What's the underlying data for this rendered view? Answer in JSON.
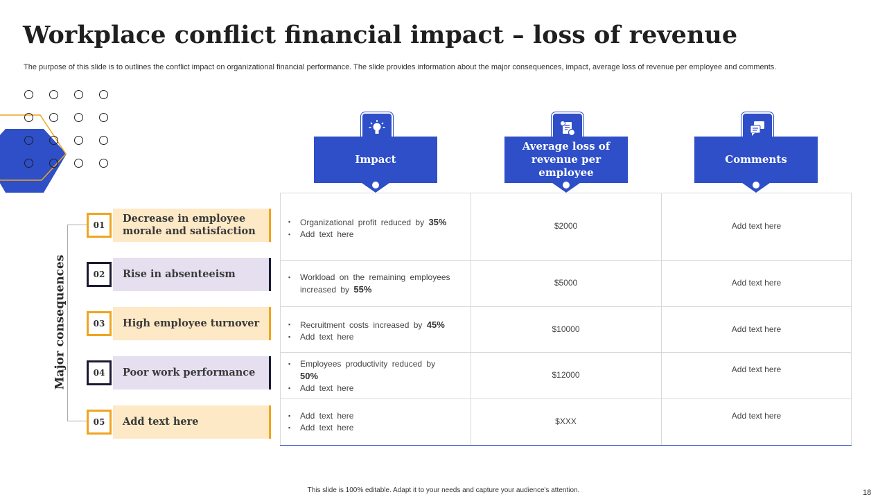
{
  "slide": {
    "title": "Workplace conflict financial impact – loss of revenue",
    "subtitle": "The purpose of this slide is to outlines the conflict impact on organizational financial performance. The slide provides information about the major consequences, impact, average loss of revenue per employee and comments.",
    "footer": "This slide is 100% editable.  Adapt it to your needs and capture your audience's attention.",
    "page_number": "18"
  },
  "colors": {
    "accent_blue": "#2e4fc8",
    "accent_orange": "#f0a41e",
    "tint_orange": "#fde9c6",
    "tint_purple": "#e5dff0",
    "dark": "#1a1a33"
  },
  "headers": [
    {
      "label": "Impact",
      "icon": "lightbulb-icon"
    },
    {
      "label": "Average loss of revenue per employee",
      "icon": "revenue-document-icon"
    },
    {
      "label": "Comments",
      "icon": "chat-bubbles-icon"
    }
  ],
  "side_label": "Major consequences",
  "consequences": [
    {
      "num": "01",
      "label": "Decrease in employee morale and satisfaction",
      "style": "orange"
    },
    {
      "num": "02",
      "label": "Rise in absenteeism",
      "style": "purple"
    },
    {
      "num": "03",
      "label": "High employee turnover",
      "style": "orange"
    },
    {
      "num": "04",
      "label": "Poor work performance",
      "style": "purple"
    },
    {
      "num": "05",
      "label": "Add text here",
      "style": "orange"
    }
  ],
  "rows": [
    {
      "impact": [
        {
          "text": "Organizational profit reduced by ",
          "bold": "35%"
        },
        {
          "text": "Add text here",
          "bold": ""
        }
      ],
      "loss": "$2000",
      "comment": "Add text here"
    },
    {
      "impact": [
        {
          "text": "Workload on the remaining employees increased by ",
          "bold": "55%"
        }
      ],
      "loss": "$5000",
      "comment": "Add text here"
    },
    {
      "impact": [
        {
          "text": "Recruitment costs increased by ",
          "bold": "45%"
        },
        {
          "text": "Add text here",
          "bold": ""
        }
      ],
      "loss": "$10000",
      "comment": "Add text here"
    },
    {
      "impact": [
        {
          "text": "Employees productivity reduced by ",
          "bold": "50%"
        },
        {
          "text": "Add text here",
          "bold": ""
        }
      ],
      "loss": "$12000",
      "comment": "Add text here"
    },
    {
      "impact": [
        {
          "text": "Add text here",
          "bold": ""
        },
        {
          "text": "Add text here",
          "bold": ""
        }
      ],
      "loss": "$XXX",
      "comment": "Add text here"
    }
  ]
}
